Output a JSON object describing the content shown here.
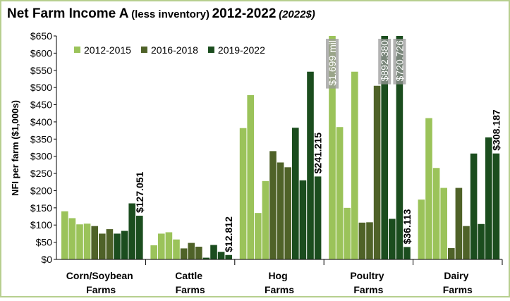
{
  "chart_data": {
    "type": "bar",
    "title": [
      "Net Farm Income A",
      "(less inventory)",
      "2012-2022",
      "(2022$)"
    ],
    "y_label": "NFI per farm ($1,000s)",
    "categories": [
      "Corn/Soybean Farms",
      "Cattle Farms",
      "Hog Farms",
      "Poultry Farms",
      "Dairy Farms"
    ],
    "series": [
      {
        "name": "2012-2015",
        "color": "#9bc35a",
        "values": [
          [
            140,
            120,
            102,
            104
          ],
          [
            41,
            75,
            79,
            58
          ],
          [
            382,
            478,
            135,
            228
          ],
          [
            1699,
            385,
            150,
            546
          ],
          [
            174,
            411,
            266,
            208
          ]
        ],
        "value_labels": [
          [
            null,
            null,
            null,
            null
          ],
          [
            null,
            null,
            null,
            null
          ],
          [
            null,
            null,
            null,
            null
          ],
          [
            "$1.699 mil",
            null,
            null,
            null
          ],
          [
            null,
            null,
            null,
            null
          ]
        ]
      },
      {
        "name": "2016-2018",
        "color": "#4f6228",
        "values": [
          [
            97,
            75,
            88
          ],
          [
            32,
            48,
            37
          ],
          [
            315,
            282,
            268
          ],
          [
            107,
            108,
            505
          ],
          [
            33,
            208,
            97
          ]
        ],
        "value_labels": [
          [
            null,
            null,
            null
          ],
          [
            null,
            null,
            null
          ],
          [
            null,
            null,
            null
          ],
          [
            null,
            null,
            null
          ],
          [
            null,
            null,
            null
          ]
        ]
      },
      {
        "name": "2019-2022",
        "color": "#1b4d1e",
        "values": [
          [
            75,
            83,
            163,
            127.051
          ],
          [
            5,
            42,
            22,
            12.812
          ],
          [
            383,
            230,
            546,
            241.215
          ],
          [
            892.38,
            118,
            720.726,
            36.113
          ],
          [
            308,
            103,
            355,
            308.187
          ]
        ],
        "value_labels": [
          [
            null,
            null,
            null,
            "$127.051"
          ],
          [
            null,
            null,
            null,
            "$12.812"
          ],
          [
            null,
            null,
            null,
            "$241.215"
          ],
          [
            "$892.380",
            null,
            "$720.726",
            "$36.113"
          ],
          [
            null,
            null,
            null,
            "$308.187"
          ]
        ]
      }
    ],
    "ylim": [
      0,
      650
    ],
    "yticks": [
      {
        "value": 0,
        "label": "$0"
      },
      {
        "value": 50,
        "label": "$50"
      },
      {
        "value": 100,
        "label": "$100"
      },
      {
        "value": 150,
        "label": "$150"
      },
      {
        "value": 200,
        "label": "$200"
      },
      {
        "value": 250,
        "label": "$250"
      },
      {
        "value": 300,
        "label": "$300"
      },
      {
        "value": 350,
        "label": "$350"
      },
      {
        "value": 400,
        "label": "$400"
      },
      {
        "value": 450,
        "label": "$450"
      },
      {
        "value": 500,
        "label": "$500"
      },
      {
        "value": 550,
        "label": "$550"
      },
      {
        "value": 600,
        "label": "$600"
      },
      {
        "value": 650,
        "label": "$650"
      }
    ],
    "legend": "top-left"
  }
}
